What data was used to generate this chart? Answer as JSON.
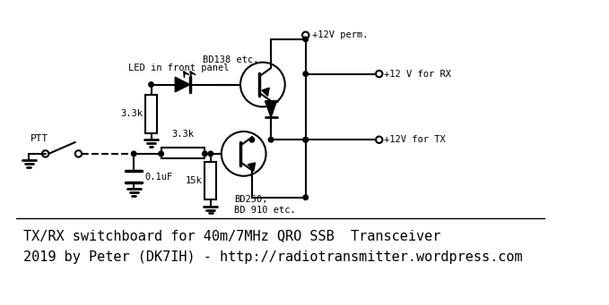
{
  "title_line1": "TX/RX switchboard for 40m/7MHz QRO SSB  Transceiver",
  "title_line2": "2019 by Peter (DK7IH) - http://radiotransmitter.wordpress.com",
  "bg_color": "#ffffff",
  "line_color": "#000000",
  "label_ptt": "PTT",
  "label_33k_top": "3.3k",
  "label_33k_bot": "3.3k",
  "label_15k": "15k",
  "label_01uF": "0.1uF",
  "label_bd138": "BD138 etc.",
  "label_bd250": "BD250,\nBD 910 etc.",
  "label_led": "LED in front panel",
  "label_12v_perm": "+12V perm.",
  "label_12v_rx": "+12 V for RX",
  "label_12v_tx": "+12V for TX"
}
